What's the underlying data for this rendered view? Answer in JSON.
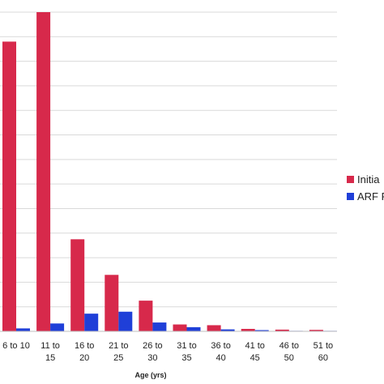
{
  "chart_data": {
    "type": "bar",
    "xlabel": "Age (yrs)",
    "ylabel": "",
    "title": "",
    "ylim": [
      0,
      13
    ],
    "grid": true,
    "legend_position": "right (clipped)",
    "categories": [
      [
        "6 to 10",
        ""
      ],
      [
        "11 to",
        "15"
      ],
      [
        "16 to",
        "20"
      ],
      [
        "21 to",
        "25"
      ],
      [
        "26 to",
        "30"
      ],
      [
        "31 to",
        "35"
      ],
      [
        "36 to",
        "40"
      ],
      [
        "41 to",
        "45"
      ],
      [
        "46 to",
        "50"
      ],
      [
        "51 to",
        "60"
      ]
    ],
    "series": [
      {
        "name": "Initia",
        "color": "#d7294b",
        "values": [
          11.8,
          13.0,
          3.75,
          2.3,
          1.25,
          0.28,
          0.25,
          0.1,
          0.07,
          0.06
        ]
      },
      {
        "name": "ARF F",
        "color": "#1f3fd8",
        "values": [
          0.12,
          0.32,
          0.72,
          0.8,
          0.36,
          0.17,
          0.08,
          0.05,
          0.02,
          0.02
        ]
      }
    ]
  }
}
